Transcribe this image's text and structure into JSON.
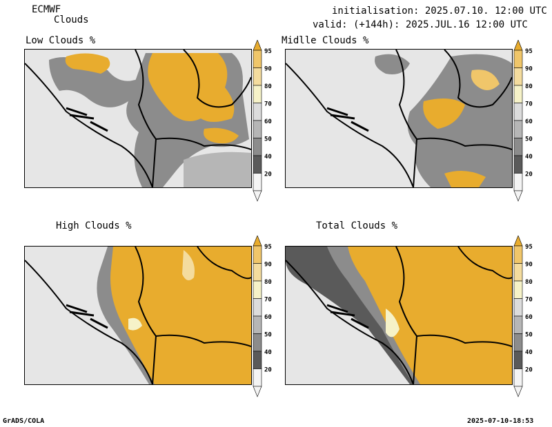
{
  "header": {
    "model": "ECMWF",
    "product": "Clouds",
    "init_line": "initialisation: 2025.07.10. 12:00 UTC",
    "valid_line": "valid: (+144h): 2025.JUL.16 12:00 UTC"
  },
  "panels": [
    {
      "title": "Low Clouds %"
    },
    {
      "title": "Midlle Clouds %"
    },
    {
      "title": "High Clouds %"
    },
    {
      "title": "Total Clouds %"
    }
  ],
  "colorbar": {
    "levels": [
      "95",
      "90",
      "80",
      "70",
      "60",
      "50",
      "40",
      "20"
    ],
    "colors": [
      "#e8ac2e",
      "#f0c66a",
      "#f4dc9e",
      "#f6f2c8",
      "#dcdcdc",
      "#b6b6b6",
      "#8c8c8c",
      "#5a5a5a",
      "#f4f4f4"
    ]
  },
  "footer": {
    "left": "GrADS/COLA",
    "right": "2025-07-10-18:53"
  }
}
